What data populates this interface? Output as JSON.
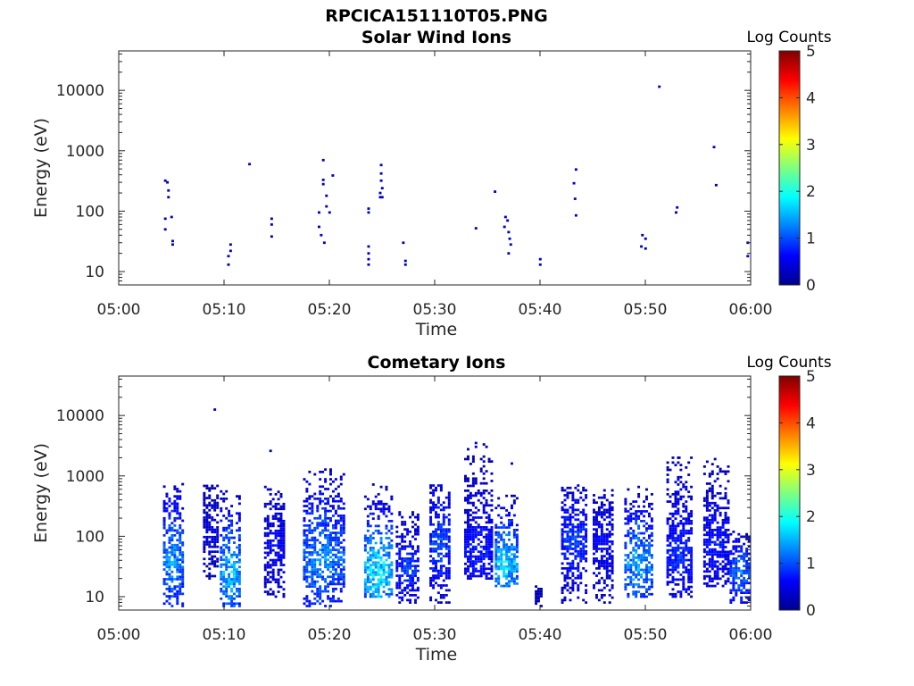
{
  "figure_title": "RPCICA151110T05.PNG",
  "colormap_stops": [
    "#00008f",
    "#0000ff",
    "#00ffff",
    "#ffff00",
    "#ff0000",
    "#800000"
  ],
  "chart_data": [
    {
      "type": "heatmap",
      "title": "Solar Wind Ions",
      "xlabel": "Time",
      "ylabel": "Energy (eV)",
      "x_ticks": [
        "05:00",
        "05:10",
        "05:20",
        "05:30",
        "05:40",
        "05:50",
        "06:00"
      ],
      "y_ticks": [
        "10",
        "100",
        "1000",
        "10000"
      ],
      "x_range_minutes": [
        0,
        60
      ],
      "y_range_ev": [
        6,
        45000
      ],
      "y_scale": "log",
      "colorbar": {
        "label": "Log Counts",
        "range": [
          0,
          5
        ],
        "ticks": [
          "0",
          "1",
          "2",
          "3",
          "4",
          "5"
        ]
      },
      "points": [
        {
          "t": 4.3,
          "e": 320,
          "c": 0.3
        },
        {
          "t": 4.5,
          "e": 300,
          "c": 0.3
        },
        {
          "t": 4.6,
          "e": 220,
          "c": 0.3
        },
        {
          "t": 4.6,
          "e": 170,
          "c": 0.3
        },
        {
          "t": 4.3,
          "e": 75,
          "c": 0.3
        },
        {
          "t": 4.3,
          "e": 50,
          "c": 0.3
        },
        {
          "t": 4.9,
          "e": 80,
          "c": 0.3
        },
        {
          "t": 5.0,
          "e": 32,
          "c": 0.3
        },
        {
          "t": 5.0,
          "e": 28,
          "c": 0.3
        },
        {
          "t": 10.5,
          "e": 28,
          "c": 0.3
        },
        {
          "t": 10.5,
          "e": 22,
          "c": 0.3
        },
        {
          "t": 10.3,
          "e": 18,
          "c": 0.3
        },
        {
          "t": 10.3,
          "e": 13,
          "c": 0.3
        },
        {
          "t": 12.3,
          "e": 600,
          "c": 0.3
        },
        {
          "t": 14.4,
          "e": 75,
          "c": 0.3
        },
        {
          "t": 14.4,
          "e": 60,
          "c": 0.3
        },
        {
          "t": 14.4,
          "e": 38,
          "c": 0.3
        },
        {
          "t": 19.3,
          "e": 700,
          "c": 0.3
        },
        {
          "t": 19.3,
          "e": 330,
          "c": 0.3
        },
        {
          "t": 19.3,
          "e": 280,
          "c": 0.3
        },
        {
          "t": 19.6,
          "e": 180,
          "c": 0.3
        },
        {
          "t": 19.6,
          "e": 120,
          "c": 0.3
        },
        {
          "t": 20.2,
          "e": 390,
          "c": 0.3
        },
        {
          "t": 18.9,
          "e": 95,
          "c": 0.3
        },
        {
          "t": 18.9,
          "e": 55,
          "c": 0.3
        },
        {
          "t": 19.1,
          "e": 40,
          "c": 0.3
        },
        {
          "t": 19.4,
          "e": 30,
          "c": 0.3
        },
        {
          "t": 19.9,
          "e": 95,
          "c": 0.3
        },
        {
          "t": 23.6,
          "e": 110,
          "c": 0.3
        },
        {
          "t": 23.6,
          "e": 95,
          "c": 0.3
        },
        {
          "t": 23.6,
          "e": 26,
          "c": 0.3
        },
        {
          "t": 23.6,
          "e": 20,
          "c": 0.3
        },
        {
          "t": 23.6,
          "e": 16,
          "c": 0.3
        },
        {
          "t": 23.6,
          "e": 13,
          "c": 0.3
        },
        {
          "t": 24.8,
          "e": 580,
          "c": 0.3
        },
        {
          "t": 24.8,
          "e": 420,
          "c": 0.3
        },
        {
          "t": 24.8,
          "e": 320,
          "c": 0.3
        },
        {
          "t": 24.9,
          "e": 240,
          "c": 0.3
        },
        {
          "t": 24.7,
          "e": 200,
          "c": 0.3
        },
        {
          "t": 24.7,
          "e": 170,
          "c": 0.3
        },
        {
          "t": 24.9,
          "e": 170,
          "c": 0.3
        },
        {
          "t": 26.9,
          "e": 30,
          "c": 0.3
        },
        {
          "t": 27.1,
          "e": 15,
          "c": 0.3
        },
        {
          "t": 27.1,
          "e": 13,
          "c": 0.3
        },
        {
          "t": 33.8,
          "e": 52,
          "c": 0.3
        },
        {
          "t": 35.6,
          "e": 210,
          "c": 0.3
        },
        {
          "t": 36.6,
          "e": 80,
          "c": 0.3
        },
        {
          "t": 36.8,
          "e": 70,
          "c": 0.3
        },
        {
          "t": 36.5,
          "e": 55,
          "c": 0.3
        },
        {
          "t": 36.9,
          "e": 45,
          "c": 0.3
        },
        {
          "t": 37.0,
          "e": 35,
          "c": 0.3
        },
        {
          "t": 37.1,
          "e": 28,
          "c": 0.3
        },
        {
          "t": 36.9,
          "e": 20,
          "c": 0.3
        },
        {
          "t": 39.9,
          "e": 16,
          "c": 0.3
        },
        {
          "t": 39.9,
          "e": 13,
          "c": 0.3
        },
        {
          "t": 43.3,
          "e": 490,
          "c": 0.3
        },
        {
          "t": 43.1,
          "e": 290,
          "c": 0.3
        },
        {
          "t": 43.2,
          "e": 160,
          "c": 0.3
        },
        {
          "t": 43.3,
          "e": 85,
          "c": 0.3
        },
        {
          "t": 49.6,
          "e": 40,
          "c": 0.3
        },
        {
          "t": 49.9,
          "e": 35,
          "c": 0.3
        },
        {
          "t": 49.5,
          "e": 26,
          "c": 0.3
        },
        {
          "t": 49.9,
          "e": 24,
          "c": 0.3
        },
        {
          "t": 51.2,
          "e": 11500,
          "c": 0.3
        },
        {
          "t": 52.9,
          "e": 115,
          "c": 0.3
        },
        {
          "t": 52.8,
          "e": 95,
          "c": 0.3
        },
        {
          "t": 56.4,
          "e": 1150,
          "c": 0.3
        },
        {
          "t": 56.6,
          "e": 270,
          "c": 0.3
        },
        {
          "t": 59.6,
          "e": 30,
          "c": 0.3
        },
        {
          "t": 59.8,
          "e": 24,
          "c": 0.3
        },
        {
          "t": 59.6,
          "e": 18,
          "c": 0.3
        }
      ]
    },
    {
      "type": "heatmap",
      "title": "Cometary Ions",
      "xlabel": "Time",
      "ylabel": "Energy (eV)",
      "x_ticks": [
        "05:00",
        "05:10",
        "05:20",
        "05:30",
        "05:40",
        "05:50",
        "06:00"
      ],
      "y_ticks": [
        "10",
        "100",
        "1000",
        "10000"
      ],
      "x_range_minutes": [
        0,
        60
      ],
      "y_range_ev": [
        6,
        45000
      ],
      "y_scale": "log",
      "colorbar": {
        "label": "Log Counts",
        "range": [
          0,
          5
        ],
        "ticks": [
          "0",
          "1",
          "2",
          "3",
          "4",
          "5"
        ]
      },
      "bursts": [
        {
          "t0": 4.2,
          "t1": 6.0,
          "emin": 7,
          "emax": 800,
          "peak_e": 40,
          "cmax": 1.5
        },
        {
          "t0": 8.0,
          "t1": 9.5,
          "emin": 20,
          "emax": 700,
          "peak_e": 120,
          "cmax": 0.5
        },
        {
          "t0": 9.6,
          "t1": 11.6,
          "emin": 7,
          "emax": 600,
          "peak_e": 25,
          "cmax": 1.7
        },
        {
          "t0": 13.8,
          "t1": 15.8,
          "emin": 10,
          "emax": 700,
          "peak_e": 70,
          "cmax": 0.7
        },
        {
          "t0": 17.5,
          "t1": 21.5,
          "emin": 7,
          "emax": 1300,
          "peak_e": 45,
          "cmax": 1.4
        },
        {
          "t0": 23.3,
          "t1": 26.0,
          "emin": 10,
          "emax": 800,
          "peak_e": 25,
          "cmax": 2.0
        },
        {
          "t0": 26.3,
          "t1": 28.5,
          "emin": 8,
          "emax": 250,
          "peak_e": 30,
          "cmax": 1.0
        },
        {
          "t0": 29.5,
          "t1": 31.5,
          "emin": 8,
          "emax": 700,
          "peak_e": 80,
          "cmax": 1.1
        },
        {
          "t0": 32.8,
          "t1": 35.5,
          "emin": 20,
          "emax": 3500,
          "peak_e": 60,
          "cmax": 0.8
        },
        {
          "t0": 35.7,
          "t1": 37.8,
          "emin": 15,
          "emax": 500,
          "peak_e": 35,
          "cmax": 1.9
        },
        {
          "t0": 39.5,
          "t1": 40.2,
          "emin": 7,
          "emax": 15,
          "peak_e": 10,
          "cmax": 0.3
        },
        {
          "t0": 42.0,
          "t1": 44.5,
          "emin": 8,
          "emax": 700,
          "peak_e": 90,
          "cmax": 1.0
        },
        {
          "t0": 45.0,
          "t1": 47.0,
          "emin": 8,
          "emax": 600,
          "peak_e": 80,
          "cmax": 0.7
        },
        {
          "t0": 48.0,
          "t1": 50.6,
          "emin": 10,
          "emax": 700,
          "peak_e": 35,
          "cmax": 1.6
        },
        {
          "t0": 52.0,
          "t1": 54.5,
          "emin": 10,
          "emax": 2200,
          "peak_e": 50,
          "cmax": 0.9
        },
        {
          "t0": 55.5,
          "t1": 58.0,
          "emin": 15,
          "emax": 1800,
          "peak_e": 70,
          "cmax": 0.8
        },
        {
          "t0": 58.0,
          "t1": 60.0,
          "emin": 8,
          "emax": 120,
          "peak_e": 25,
          "cmax": 1.3
        }
      ],
      "points": [
        {
          "t": 9.0,
          "e": 12500,
          "c": 0.3
        },
        {
          "t": 14.3,
          "e": 2600,
          "c": 0.3
        },
        {
          "t": 33.8,
          "e": 3500,
          "c": 0.3
        },
        {
          "t": 37.2,
          "e": 1600,
          "c": 0.3
        },
        {
          "t": 53.1,
          "e": 2000,
          "c": 0.3
        },
        {
          "t": 56.5,
          "e": 1900,
          "c": 0.3
        }
      ]
    }
  ]
}
